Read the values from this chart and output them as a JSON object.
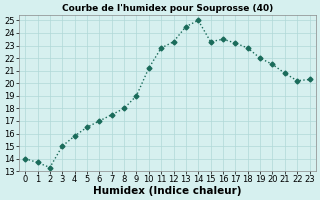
{
  "x": [
    0,
    1,
    2,
    3,
    4,
    5,
    6,
    7,
    8,
    9,
    10,
    11,
    12,
    13,
    14,
    15,
    16,
    17,
    18,
    19,
    20,
    21,
    22,
    23
  ],
  "y": [
    14.0,
    13.7,
    13.3,
    15.0,
    15.8,
    16.5,
    17.0,
    17.5,
    18.0,
    19.0,
    21.2,
    22.8,
    23.3,
    24.5,
    25.0,
    23.3,
    23.5,
    23.2,
    22.8,
    22.0,
    21.5,
    20.8,
    20.2,
    20.3
  ],
  "line_color": "#1a6b5a",
  "marker": "D",
  "markersize": 2.5,
  "linewidth": 1.0,
  "linestyle": "dotted",
  "title": "Courbe de l'humidex pour Souprosse (40)",
  "xlabel": "Humidex (Indice chaleur)",
  "ylabel": "",
  "ylim": [
    13,
    25.4
  ],
  "xlim": [
    -0.5,
    23.5
  ],
  "yticks": [
    13,
    14,
    15,
    16,
    17,
    18,
    19,
    20,
    21,
    22,
    23,
    24,
    25
  ],
  "xticks": [
    0,
    1,
    2,
    3,
    4,
    5,
    6,
    7,
    8,
    9,
    10,
    11,
    12,
    13,
    14,
    15,
    16,
    17,
    18,
    19,
    20,
    21,
    22,
    23
  ],
  "bg_color": "#d6f0ef",
  "grid_color": "#b0d8d8",
  "title_fontsize": 6.5,
  "xlabel_fontsize": 7.5,
  "tick_fontsize": 6.0
}
